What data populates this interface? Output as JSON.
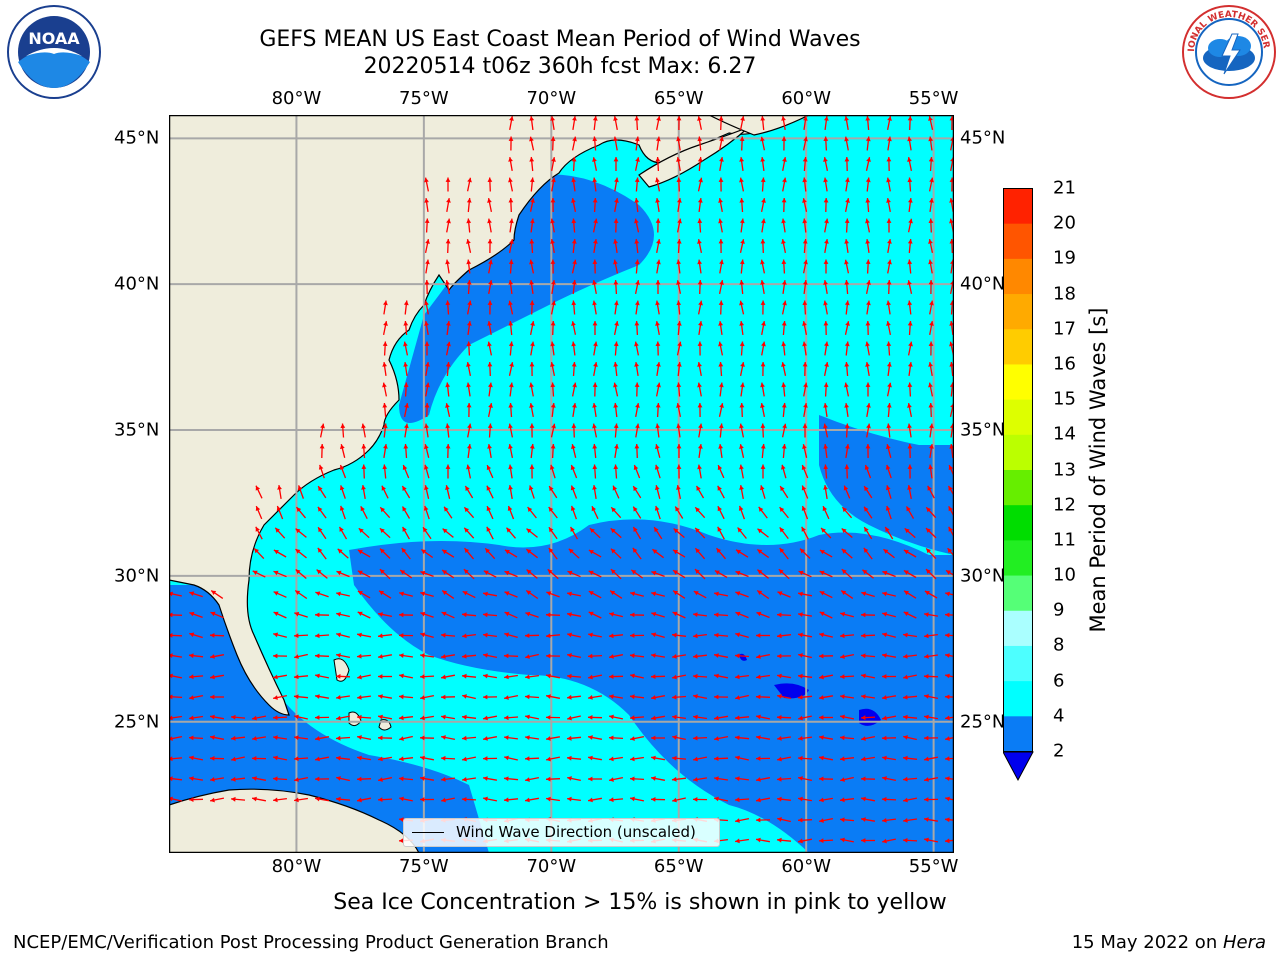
{
  "header": {
    "title_line1": "GEFS MEAN US East Coast Mean Period of Wind Waves",
    "title_line2": "20220514 t06z 360h fcst   Max: 6.27"
  },
  "logos": {
    "left": {
      "icon": "noaa-logo-icon",
      "text": "NOAA",
      "colors": [
        "#1a3f8f",
        "#1e88e5",
        "#ffffff"
      ]
    },
    "right": {
      "icon": "nws-logo-icon",
      "text": "NATIONAL WEATHER SERVICE",
      "colors": [
        "#d32f2f",
        "#1565c0",
        "#ffffff"
      ]
    }
  },
  "map": {
    "lon_ticks": [
      "80°W",
      "75°W",
      "70°W",
      "65°W",
      "60°W",
      "55°W"
    ],
    "lat_ticks": [
      "45°N",
      "40°N",
      "35°N",
      "30°N",
      "25°N"
    ],
    "lon_values": [
      -80,
      -75,
      -70,
      -65,
      -60,
      -55
    ],
    "lat_values": [
      45,
      40,
      35,
      30,
      25
    ],
    "extent": {
      "lon": [
        -85,
        -54.2
      ],
      "lat": [
        20.5,
        45.8
      ]
    },
    "colors": {
      "land": "#efeddc",
      "ocean_2_4": "#0a7cf5",
      "ocean_4_6": "#00ffff",
      "below_2": "#0000ee",
      "arrows": "#ff0000",
      "grid": "#a8a8a8"
    },
    "legend_label": "Wind Wave Direction (unscaled)",
    "max_value": 6.27,
    "arrow_direction": "mostly northward in the north, westward in the south"
  },
  "colorbar": {
    "title": "Mean Period of Wind Waves [s]",
    "ticks": [
      "21",
      "20",
      "19",
      "18",
      "17",
      "16",
      "15",
      "14",
      "13",
      "12",
      "11",
      "10",
      "9",
      "8",
      "6",
      "4",
      "2"
    ],
    "segments": [
      {
        "from": 2,
        "to": 4,
        "color": "#0a7cf5"
      },
      {
        "from": 4,
        "to": 6,
        "color": "#00ffff"
      },
      {
        "from": 6,
        "to": 8,
        "color": "#4dffff"
      },
      {
        "from": 8,
        "to": 9,
        "color": "#aaffff"
      },
      {
        "from": 9,
        "to": 10,
        "color": "#55ff77"
      },
      {
        "from": 10,
        "to": 11,
        "color": "#22ee22"
      },
      {
        "from": 11,
        "to": 12,
        "color": "#00dd00"
      },
      {
        "from": 12,
        "to": 13,
        "color": "#66ee00"
      },
      {
        "from": 13,
        "to": 14,
        "color": "#bbff00"
      },
      {
        "from": 14,
        "to": 15,
        "color": "#ddff00"
      },
      {
        "from": 15,
        "to": 16,
        "color": "#ffff00"
      },
      {
        "from": 16,
        "to": 17,
        "color": "#ffcc00"
      },
      {
        "from": 17,
        "to": 18,
        "color": "#ffaa00"
      },
      {
        "from": 18,
        "to": 19,
        "color": "#ff8800"
      },
      {
        "from": 19,
        "to": 20,
        "color": "#ff5500"
      },
      {
        "from": 20,
        "to": 21,
        "color": "#ff2200"
      }
    ],
    "under_color": "#0000ee"
  },
  "footer": {
    "note": "Sea Ice Concentration > 15% is shown in pink to yellow",
    "left": "NCEP/EMC/Verification Post Processing Product Generation Branch",
    "right_date": "15 May 2022 on ",
    "right_machine": "Hera"
  }
}
